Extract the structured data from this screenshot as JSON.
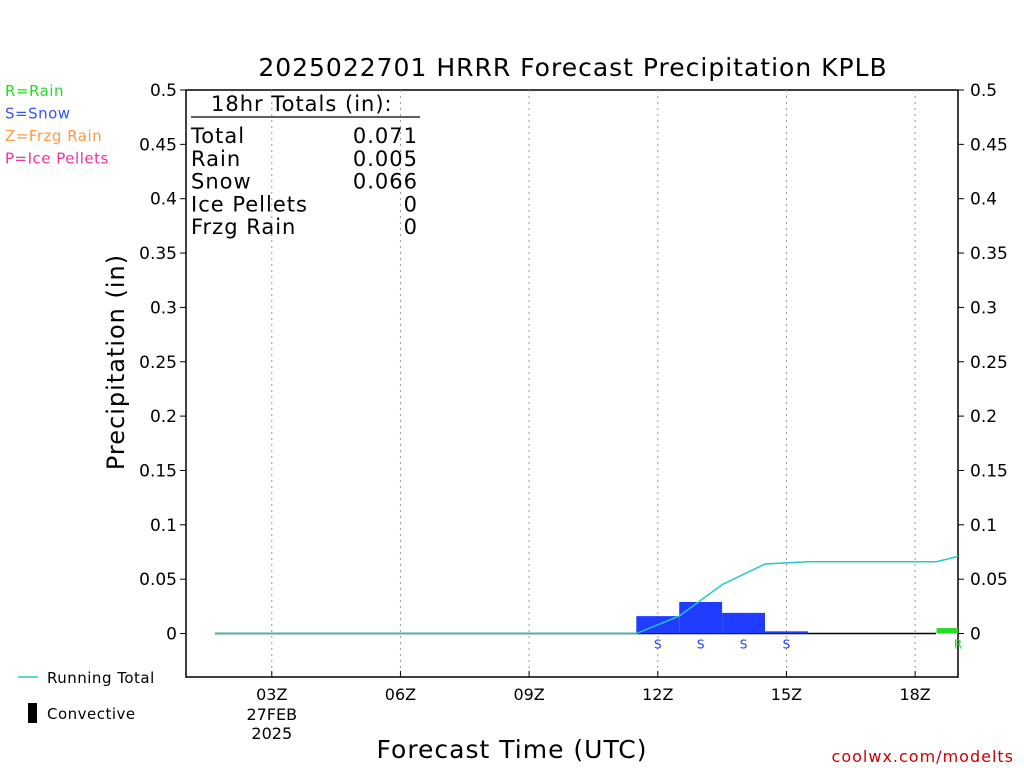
{
  "chart_data": {
    "type": "bar",
    "title": "2025022701 HRRR Forecast Precipitation KPLB",
    "xlabel": "Forecast Time (UTC)",
    "ylabel": "Precipitation (in)",
    "ylim": [
      -0.04,
      0.5
    ],
    "yticks": [
      "0.5",
      "0.45",
      "0.4",
      "0.35",
      "0.3",
      "0.25",
      "0.2",
      "0.15",
      "0.1",
      "0.05",
      "0"
    ],
    "xticks": [
      {
        "hour": 3,
        "label": "03Z",
        "sub1": "27FEB",
        "sub2": "2025"
      },
      {
        "hour": 6,
        "label": "06Z"
      },
      {
        "hour": 9,
        "label": "09Z"
      },
      {
        "hour": 12,
        "label": "12Z"
      },
      {
        "hour": 15,
        "label": "15Z"
      },
      {
        "hour": 18,
        "label": "18Z"
      }
    ],
    "xrange_hours": [
      1,
      19
    ],
    "hours": [
      2,
      3,
      4,
      5,
      6,
      7,
      8,
      9,
      10,
      11,
      12,
      13,
      14,
      15,
      16,
      17,
      18,
      19
    ],
    "precip": [
      0,
      0,
      0,
      0,
      0,
      0,
      0,
      0,
      0,
      0,
      0.016,
      0.029,
      0.019,
      0.002,
      0,
      0,
      0,
      0.005
    ],
    "ptype": [
      "",
      "",
      "",
      "",
      "",
      "",
      "",
      "",
      "",
      "",
      "S",
      "S",
      "S",
      "S",
      "",
      "",
      "",
      "R"
    ],
    "running_total": [
      0,
      0,
      0,
      0,
      0,
      0,
      0,
      0,
      0,
      0,
      0.016,
      0.045,
      0.064,
      0.066,
      0.066,
      0.066,
      0.066,
      0.071
    ],
    "grid": "vertical dotted",
    "totals_box": {
      "header": "18hr Totals (in):",
      "rows": [
        {
          "label": "Total",
          "value": "0.071"
        },
        {
          "label": "Rain",
          "value": "0.005"
        },
        {
          "label": "Snow",
          "value": "0.066"
        },
        {
          "label": "Ice Pellets",
          "value": "0"
        },
        {
          "label": "Frzg Rain",
          "value": "0"
        }
      ]
    },
    "type_legend": [
      {
        "text": "R=Rain",
        "color": "#22dd22"
      },
      {
        "text": "S=Snow",
        "color": "#3355ff"
      },
      {
        "text": "Z=Frzg Rain",
        "color": "#ff9944"
      },
      {
        "text": "P=Ice Pellets",
        "color": "#ee3399"
      }
    ],
    "series_legend": [
      {
        "text": "Running Total",
        "color": "#22c8c8"
      },
      {
        "text": "Convective",
        "color": "#000000"
      }
    ],
    "colors": {
      "snow": "#1f3cff",
      "rain": "#22dd22",
      "running_total": "#22c8c8"
    }
  },
  "credit": "coolwx.com/modelts"
}
